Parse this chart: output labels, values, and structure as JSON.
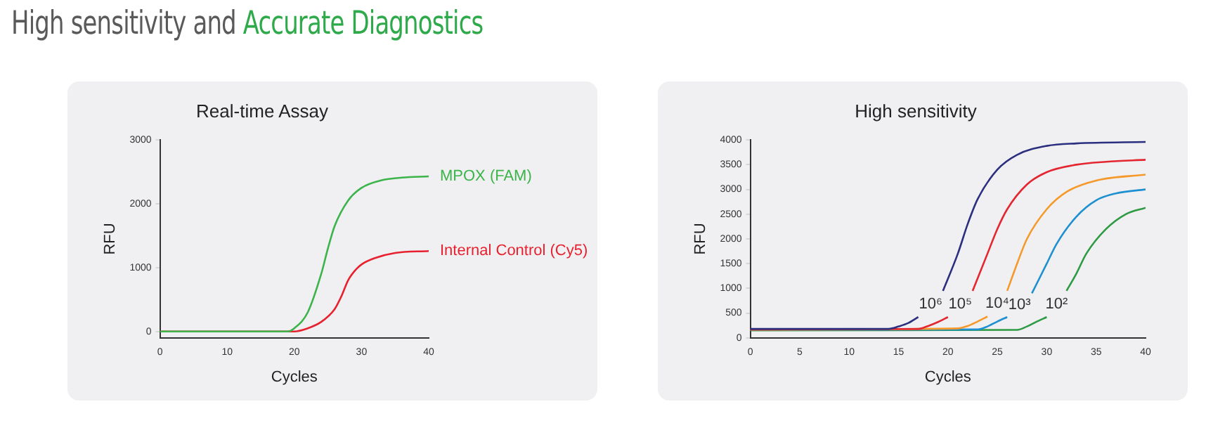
{
  "chart_data": [
    {
      "type": "line",
      "title": "Real-time Assay",
      "xlabel": "Cycles",
      "ylabel": "RFU",
      "annotations": [
        "High sensitivity and",
        "Accurate Diagnostics"
      ],
      "xlim": [
        0,
        40
      ],
      "xticks": [
        0,
        10,
        20,
        30,
        40
      ],
      "ylim": [
        -100,
        3000
      ],
      "yticks": [
        0,
        1000,
        2000,
        3000
      ],
      "grid": false,
      "legend": false,
      "marker": "none",
      "line_style": "solid",
      "series": [
        {
          "name": "MPOX (FAM)",
          "color": "#3cb44b",
          "x": [
            0,
            10,
            19,
            20,
            22,
            24,
            25,
            26,
            28,
            30,
            33,
            36,
            40
          ],
          "values": [
            0,
            0,
            0,
            50,
            300,
            900,
            1300,
            1650,
            2050,
            2250,
            2370,
            2410,
            2430
          ]
        },
        {
          "name": "Internal Control (Cy5)",
          "color": "#e8212f",
          "x": [
            0,
            10,
            20,
            22,
            24,
            26,
            27,
            28,
            29,
            30,
            32,
            35,
            40
          ],
          "values": [
            0,
            0,
            0,
            50,
            150,
            350,
            550,
            800,
            950,
            1050,
            1150,
            1230,
            1260
          ]
        }
      ]
    },
    {
      "type": "line",
      "title": "High sensitivity",
      "xlabel": "Cycles",
      "ylabel": "RFU",
      "xlim": [
        0,
        40
      ],
      "xticks": [
        0,
        5,
        10,
        15,
        20,
        25,
        30,
        35,
        40
      ],
      "ylim": [
        0,
        4000
      ],
      "yticks": [
        0,
        500,
        1000,
        1500,
        2000,
        2500,
        3000,
        3500,
        4000
      ],
      "grid": false,
      "legend": false,
      "marker": "none",
      "line_style": "solid",
      "series": [
        {
          "name": "10⁶",
          "color": "#2b2f7f",
          "x": [
            0,
            14,
            15,
            16,
            17,
            18.5,
            19.5,
            21,
            22,
            23,
            25,
            27,
            30,
            33,
            40
          ],
          "values": [
            180,
            180,
            230,
            300,
            420,
            null,
            950,
            1700,
            2300,
            2800,
            3400,
            3700,
            3880,
            3930,
            3960
          ]
        },
        {
          "name": "10⁵",
          "color": "#e3262f",
          "x": [
            0,
            17,
            18,
            19,
            20,
            21.5,
            22.5,
            24,
            25,
            26,
            28,
            30,
            33,
            36,
            40
          ],
          "values": [
            170,
            180,
            240,
            320,
            420,
            null,
            950,
            1700,
            2200,
            2600,
            3100,
            3350,
            3500,
            3560,
            3600
          ]
        },
        {
          "name": "10⁴",
          "color": "#f59a2a",
          "x": [
            0,
            21,
            22,
            23,
            24,
            25,
            26,
            27,
            28,
            30,
            32,
            35,
            40
          ],
          "values": [
            165,
            190,
            240,
            330,
            430,
            null,
            950,
            1500,
            2000,
            2600,
            2950,
            3180,
            3300
          ]
        },
        {
          "name": "10³",
          "color": "#1e90d0",
          "x": [
            0,
            23,
            24,
            25,
            26,
            27.5,
            28.5,
            30,
            31,
            33,
            35,
            37,
            40
          ],
          "values": [
            160,
            170,
            230,
            330,
            420,
            null,
            900,
            1500,
            1900,
            2450,
            2780,
            2920,
            3000
          ]
        },
        {
          "name": "10²",
          "color": "#2e9a44",
          "x": [
            0,
            27,
            28,
            29,
            30,
            31,
            32,
            33,
            34,
            36,
            38,
            40
          ],
          "values": [
            150,
            160,
            230,
            330,
            420,
            null,
            950,
            1300,
            1700,
            2200,
            2500,
            2630
          ]
        }
      ]
    }
  ]
}
